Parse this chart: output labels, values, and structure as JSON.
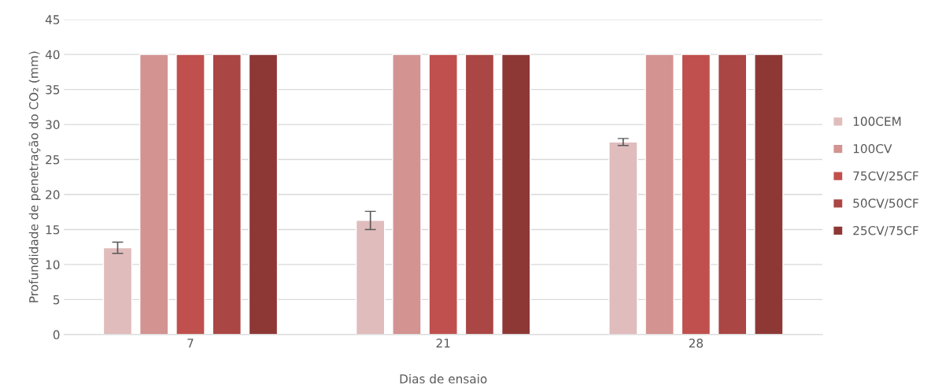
{
  "chart_data": {
    "type": "bar",
    "xlabel": "Dias de ensaio",
    "ylabel": "Profundidade de penetração do CO₂ (mm)",
    "categories": [
      "7",
      "21",
      "28"
    ],
    "series": [
      {
        "name": "100CEM",
        "color": "#e0bcbc",
        "values": [
          12.4,
          16.3,
          27.5
        ],
        "errors": [
          0.8,
          1.3,
          0.5
        ]
      },
      {
        "name": "100CV",
        "color": "#d39391",
        "values": [
          40,
          40,
          40
        ]
      },
      {
        "name": "75CV/25CF",
        "color": "#c0504d",
        "values": [
          40,
          40,
          40
        ]
      },
      {
        "name": "50CV/50CF",
        "color": "#aa4644",
        "values": [
          40,
          40,
          40
        ]
      },
      {
        "name": "25CV/75CF",
        "color": "#8e3836",
        "values": [
          40,
          40,
          40
        ]
      }
    ],
    "ylim": [
      0,
      45
    ],
    "yticks": [
      0,
      5,
      10,
      15,
      20,
      25,
      30,
      35,
      40,
      45
    ],
    "grid": "y",
    "legend": "right"
  }
}
